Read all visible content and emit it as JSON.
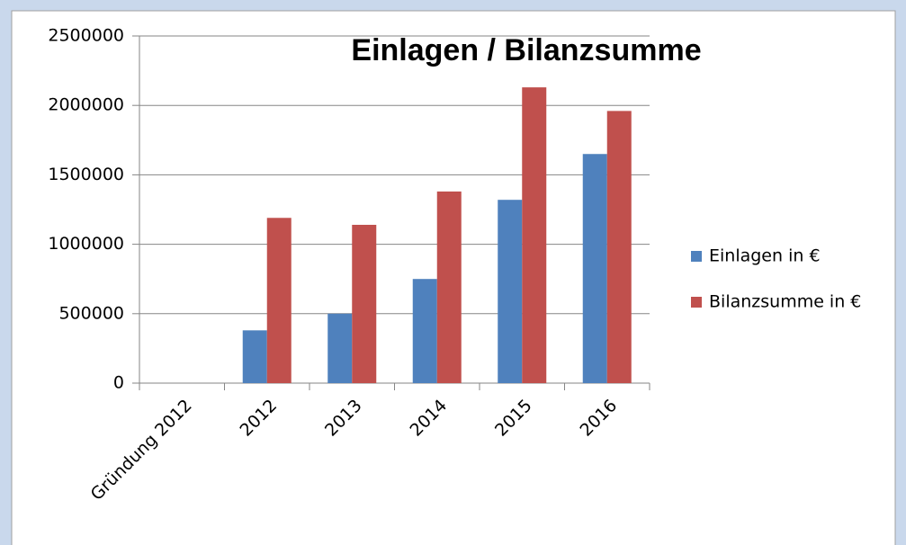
{
  "chart_data": {
    "type": "bar",
    "title": "Einlagen / Bilanzsumme",
    "categories": [
      "Gründung 2012",
      "2012",
      "2013",
      "2014",
      "2015",
      "2016"
    ],
    "series": [
      {
        "name": "Einlagen in €",
        "color": "#4f81bd",
        "values": [
          0,
          380000,
          500000,
          750000,
          1320000,
          1650000
        ]
      },
      {
        "name": "Bilanzsumme in €",
        "color": "#c0504d",
        "values": [
          0,
          1190000,
          1140000,
          1380000,
          2130000,
          1960000
        ]
      }
    ],
    "ylim": [
      0,
      2500000
    ],
    "yticks": [
      0,
      500000,
      1000000,
      1500000,
      2000000,
      2500000
    ],
    "grid": true,
    "legend": "right"
  }
}
